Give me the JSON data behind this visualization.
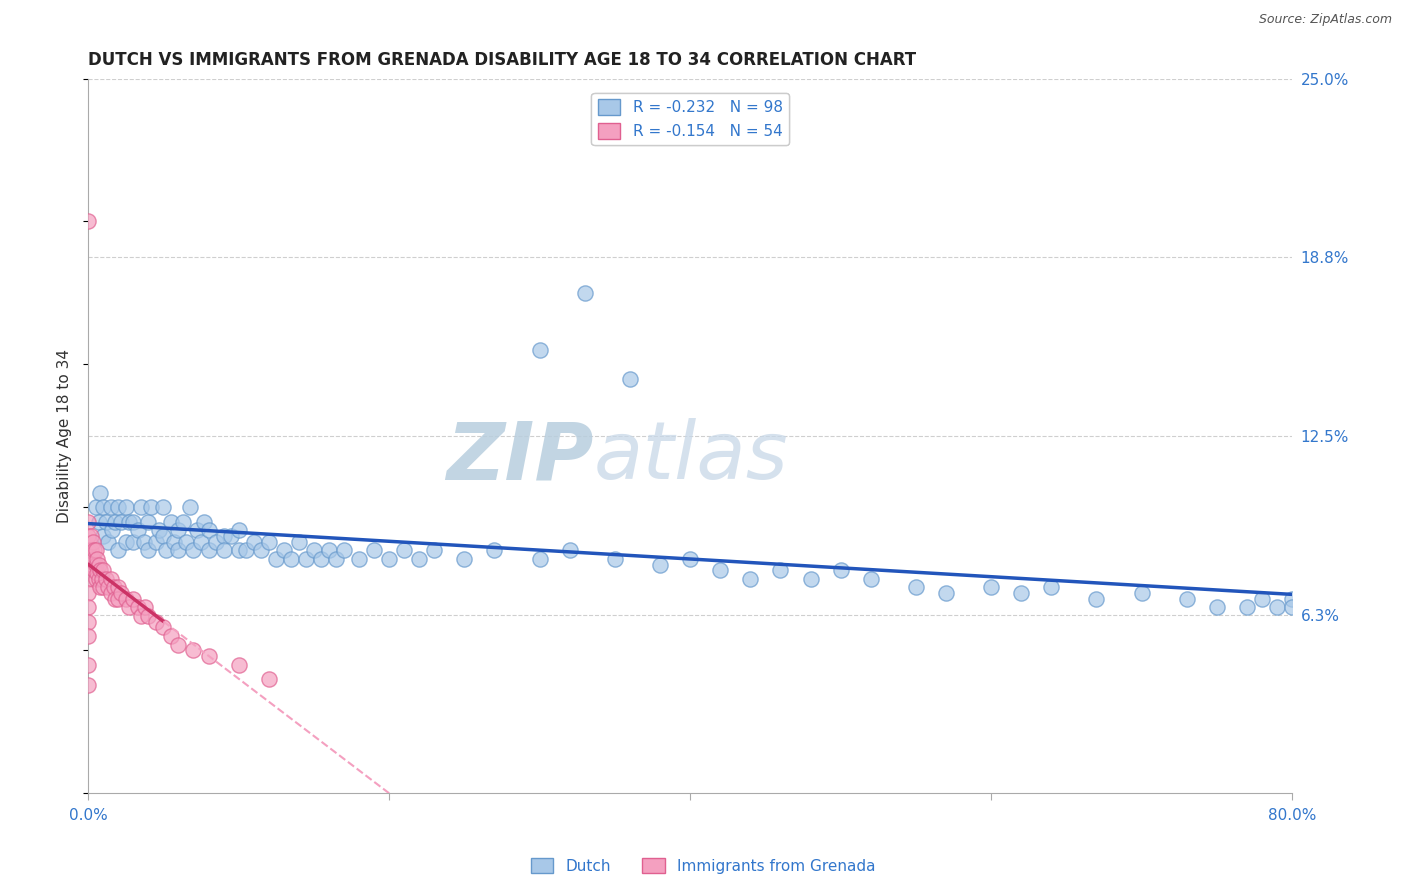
{
  "title": "DUTCH VS IMMIGRANTS FROM GRENADA DISABILITY AGE 18 TO 34 CORRELATION CHART",
  "source_text": "Source: ZipAtlas.com",
  "ylabel": "Disability Age 18 to 34",
  "xlim": [
    0.0,
    0.8
  ],
  "ylim": [
    0.0,
    0.25
  ],
  "yticks": [
    0.0,
    0.0625,
    0.125,
    0.1875,
    0.25
  ],
  "ytick_labels": [
    "",
    "6.3%",
    "12.5%",
    "18.8%",
    "25.0%"
  ],
  "xticks": [
    0.0,
    0.2,
    0.4,
    0.6,
    0.8
  ],
  "xtick_labels": [
    "0.0%",
    "",
    "",
    "",
    "80.0%"
  ],
  "legend_r1": "R = -0.232",
  "legend_n1": "N = 98",
  "legend_r2": "R = -0.154",
  "legend_n2": "N = 54",
  "dutch_color": "#A8C8E8",
  "grenada_color": "#F4A0C0",
  "dutch_edge_color": "#6699CC",
  "grenada_edge_color": "#E06090",
  "trend_blue_color": "#2255BB",
  "trend_pink_solid_color": "#CC3366",
  "trend_pink_dash_color": "#F4A0C0",
  "watermark_color": "#D0DFF0",
  "title_fontsize": 12,
  "axis_label_fontsize": 11,
  "tick_label_fontsize": 11,
  "legend_fontsize": 11,
  "background_color": "#FFFFFF",
  "grid_color": "#BBBBBB",
  "dutch_x": [
    0.005,
    0.007,
    0.008,
    0.01,
    0.01,
    0.012,
    0.013,
    0.015,
    0.016,
    0.018,
    0.02,
    0.02,
    0.022,
    0.025,
    0.025,
    0.027,
    0.03,
    0.03,
    0.033,
    0.035,
    0.037,
    0.04,
    0.04,
    0.042,
    0.045,
    0.047,
    0.05,
    0.05,
    0.052,
    0.055,
    0.057,
    0.06,
    0.06,
    0.063,
    0.065,
    0.068,
    0.07,
    0.072,
    0.075,
    0.077,
    0.08,
    0.08,
    0.085,
    0.09,
    0.09,
    0.095,
    0.1,
    0.1,
    0.105,
    0.11,
    0.115,
    0.12,
    0.125,
    0.13,
    0.135,
    0.14,
    0.145,
    0.15,
    0.155,
    0.16,
    0.165,
    0.17,
    0.18,
    0.19,
    0.2,
    0.21,
    0.22,
    0.23,
    0.25,
    0.27,
    0.3,
    0.32,
    0.35,
    0.38,
    0.4,
    0.42,
    0.44,
    0.46,
    0.48,
    0.5,
    0.52,
    0.55,
    0.57,
    0.6,
    0.62,
    0.64,
    0.67,
    0.7,
    0.73,
    0.75,
    0.77,
    0.78,
    0.79,
    0.8,
    0.8,
    0.3,
    0.33,
    0.36
  ],
  "dutch_y": [
    0.1,
    0.095,
    0.105,
    0.09,
    0.1,
    0.095,
    0.088,
    0.1,
    0.092,
    0.095,
    0.1,
    0.085,
    0.095,
    0.1,
    0.088,
    0.095,
    0.095,
    0.088,
    0.092,
    0.1,
    0.088,
    0.095,
    0.085,
    0.1,
    0.088,
    0.092,
    0.09,
    0.1,
    0.085,
    0.095,
    0.088,
    0.092,
    0.085,
    0.095,
    0.088,
    0.1,
    0.085,
    0.092,
    0.088,
    0.095,
    0.085,
    0.092,
    0.088,
    0.09,
    0.085,
    0.09,
    0.085,
    0.092,
    0.085,
    0.088,
    0.085,
    0.088,
    0.082,
    0.085,
    0.082,
    0.088,
    0.082,
    0.085,
    0.082,
    0.085,
    0.082,
    0.085,
    0.082,
    0.085,
    0.082,
    0.085,
    0.082,
    0.085,
    0.082,
    0.085,
    0.082,
    0.085,
    0.082,
    0.08,
    0.082,
    0.078,
    0.075,
    0.078,
    0.075,
    0.078,
    0.075,
    0.072,
    0.07,
    0.072,
    0.07,
    0.072,
    0.068,
    0.07,
    0.068,
    0.065,
    0.065,
    0.068,
    0.065,
    0.068,
    0.065,
    0.155,
    0.175,
    0.145
  ],
  "grenada_x": [
    0.0,
    0.0,
    0.0,
    0.0,
    0.0,
    0.0,
    0.0,
    0.0,
    0.0,
    0.0,
    0.0,
    0.0,
    0.002,
    0.002,
    0.003,
    0.003,
    0.004,
    0.004,
    0.005,
    0.005,
    0.005,
    0.006,
    0.006,
    0.007,
    0.007,
    0.008,
    0.008,
    0.009,
    0.01,
    0.01,
    0.012,
    0.013,
    0.015,
    0.015,
    0.017,
    0.018,
    0.02,
    0.02,
    0.022,
    0.025,
    0.027,
    0.03,
    0.033,
    0.035,
    0.038,
    0.04,
    0.045,
    0.05,
    0.055,
    0.06,
    0.07,
    0.08,
    0.1,
    0.12
  ],
  "grenada_y": [
    0.2,
    0.095,
    0.09,
    0.085,
    0.08,
    0.075,
    0.07,
    0.065,
    0.06,
    0.055,
    0.045,
    0.038,
    0.09,
    0.085,
    0.088,
    0.082,
    0.085,
    0.078,
    0.085,
    0.08,
    0.075,
    0.082,
    0.077,
    0.08,
    0.075,
    0.078,
    0.072,
    0.075,
    0.078,
    0.072,
    0.075,
    0.072,
    0.075,
    0.07,
    0.072,
    0.068,
    0.072,
    0.068,
    0.07,
    0.068,
    0.065,
    0.068,
    0.065,
    0.062,
    0.065,
    0.062,
    0.06,
    0.058,
    0.055,
    0.052,
    0.05,
    0.048,
    0.045,
    0.04
  ]
}
